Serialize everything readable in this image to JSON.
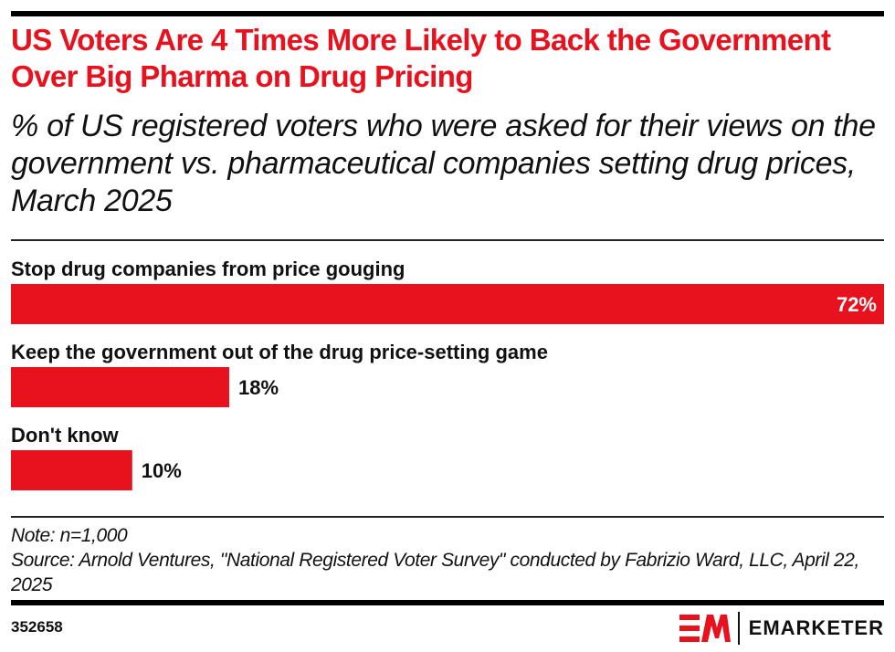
{
  "header": {
    "title": "US Voters Are 4 Times More Likely to Back the Government Over Big Pharma on Drug Pricing",
    "subtitle": "% of US registered voters who were asked for their views on the government vs. pharmaceutical companies setting drug prices, March 2025"
  },
  "colors": {
    "accent": "#e8111e",
    "text": "#111111",
    "value_label_inside": "#ffffff"
  },
  "chart_data": {
    "type": "bar",
    "orientation": "horizontal",
    "title": "US Voters Are 4 Times More Likely to Back the Government Over Big Pharma on Drug Pricing",
    "subtitle": "% of US registered voters who were asked for their views on the government vs. pharmaceutical companies setting drug prices, March 2025",
    "categories": [
      "Stop drug companies from price gouging",
      "Keep the government out of the drug price-setting game",
      "Don't know"
    ],
    "values": [
      72,
      18,
      10
    ],
    "value_labels": [
      "72%",
      "18%",
      "10%"
    ],
    "unit": "%",
    "xlim": [
      0,
      72
    ],
    "xlabel": "",
    "ylabel": "",
    "grid": false,
    "legend": "none"
  },
  "footer": {
    "note": "Note: n=1,000",
    "source": "Source: Arnold Ventures, \"National Registered Voter Survey\" conducted by Fabrizio Ward, LLC, April 22, 2025",
    "chart_id": "352658",
    "brand": "EMARKETER"
  }
}
